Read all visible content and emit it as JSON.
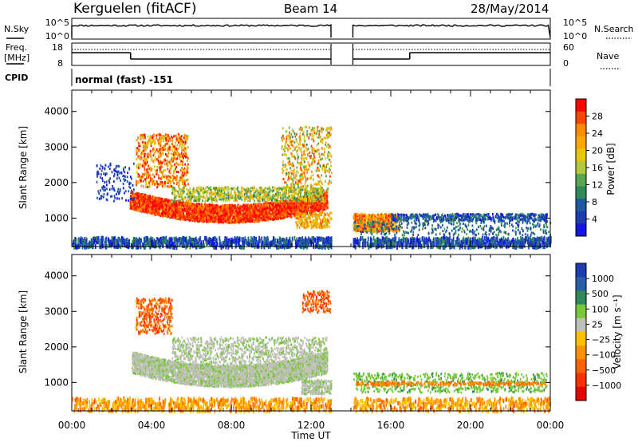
{
  "header": {
    "station": "Kerguelen (fitACF)",
    "beam": "Beam 14",
    "date": "28/May/2014"
  },
  "chart_data": [
    {
      "type": "line",
      "panel": "nsky-nsearch",
      "left_label": "N.Sky",
      "right_label": "N.Search",
      "left_ticks": [
        "10^5",
        "10^0"
      ],
      "right_ticks": [
        "10^5",
        "10^0"
      ],
      "gap_hours": [
        13.0,
        14.1
      ]
    },
    {
      "type": "line",
      "panel": "freq-nave",
      "left_label_lines": [
        "Freq.",
        "[MHz]"
      ],
      "right_label": "Nave",
      "left_ticks": [
        18,
        8
      ],
      "right_ticks": [
        60,
        0
      ],
      "freq_steps": [
        {
          "from": 0.0,
          "to": 2.95,
          "level": "high"
        },
        {
          "from": 2.95,
          "to": 13.0,
          "level": "low"
        },
        {
          "from": 14.1,
          "to": 16.95,
          "level": "low"
        },
        {
          "from": 16.95,
          "to": 24.0,
          "level": "high"
        }
      ]
    },
    {
      "type": "table",
      "panel": "cpid",
      "label": "CPID",
      "value": "normal (fast) -151"
    },
    {
      "type": "heatmap",
      "panel": "power",
      "ylabel": "Slant Range [km]",
      "yticks": [
        1000,
        2000,
        3000,
        4000
      ],
      "ylim": [
        200,
        4600
      ],
      "colorbar_label": "Power [dB]",
      "colorbar_ticks": [
        "28",
        "24",
        "20",
        "16",
        "12",
        "8",
        "4"
      ],
      "colorbar_colors": [
        "#ff0000",
        "#ff4500",
        "#ff8c00",
        "#ffa500",
        "#e6c800",
        "#b4c83c",
        "#5aa550",
        "#2f8a5a",
        "#1e5aa0",
        "#1e3cb4",
        "#1414e6"
      ]
    },
    {
      "type": "heatmap",
      "panel": "velocity",
      "ylabel": "Slant Range [km]",
      "yticks": [
        1000,
        2000,
        3000,
        4000
      ],
      "ylim": [
        200,
        4600
      ],
      "colorbar_label": "Velocity [m s⁻¹]",
      "colorbar_ticks": [
        "1000",
        "500",
        "100",
        "25",
        "−25",
        "−100",
        "−500",
        "−1000"
      ],
      "colorbar_colors": [
        "#1e3cb4",
        "#2860a8",
        "#2f8a5a",
        "#78c83c",
        "#c0c0b8",
        "#ffc000",
        "#ff9000",
        "#ff6000",
        "#ff3000",
        "#e60000"
      ],
      "xlabel": "Time UT",
      "xticks": [
        "00:00",
        "04:00",
        "08:00",
        "12:00",
        "16:00",
        "20:00",
        "00:00"
      ],
      "xlim_hours": [
        0,
        24
      ]
    }
  ]
}
